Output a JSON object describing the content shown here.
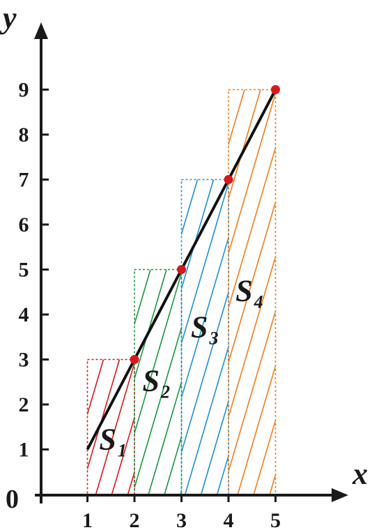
{
  "axes": {
    "x_title": "x",
    "y_title": "y",
    "origin": "0",
    "x_ticks": [
      "1",
      "2",
      "3",
      "4",
      "5"
    ],
    "y_ticks": [
      "1",
      "2",
      "3",
      "4",
      "5",
      "6",
      "7",
      "8",
      "9"
    ]
  },
  "chart_data": {
    "type": "line",
    "x": [
      1,
      2,
      3,
      4,
      5
    ],
    "y": [
      1,
      3,
      5,
      7,
      9
    ],
    "xlim": [
      0,
      5.5
    ],
    "ylim": [
      0,
      9.5
    ],
    "line_color": "#111111",
    "point_color": "#d7191c",
    "rectangles": [
      {
        "label": "S",
        "sub": "1",
        "x0": 1,
        "x1": 2,
        "height": 3,
        "color": "#d7191c"
      },
      {
        "label": "S",
        "sub": "2",
        "x0": 2,
        "x1": 3,
        "height": 5,
        "color": "#1a9641"
      },
      {
        "label": "S",
        "sub": "3",
        "x0": 3,
        "x1": 4,
        "height": 7,
        "color": "#1f8fd6"
      },
      {
        "label": "S",
        "sub": "4",
        "x0": 4,
        "x1": 5,
        "height": 9,
        "color": "#f07d1a"
      }
    ]
  }
}
